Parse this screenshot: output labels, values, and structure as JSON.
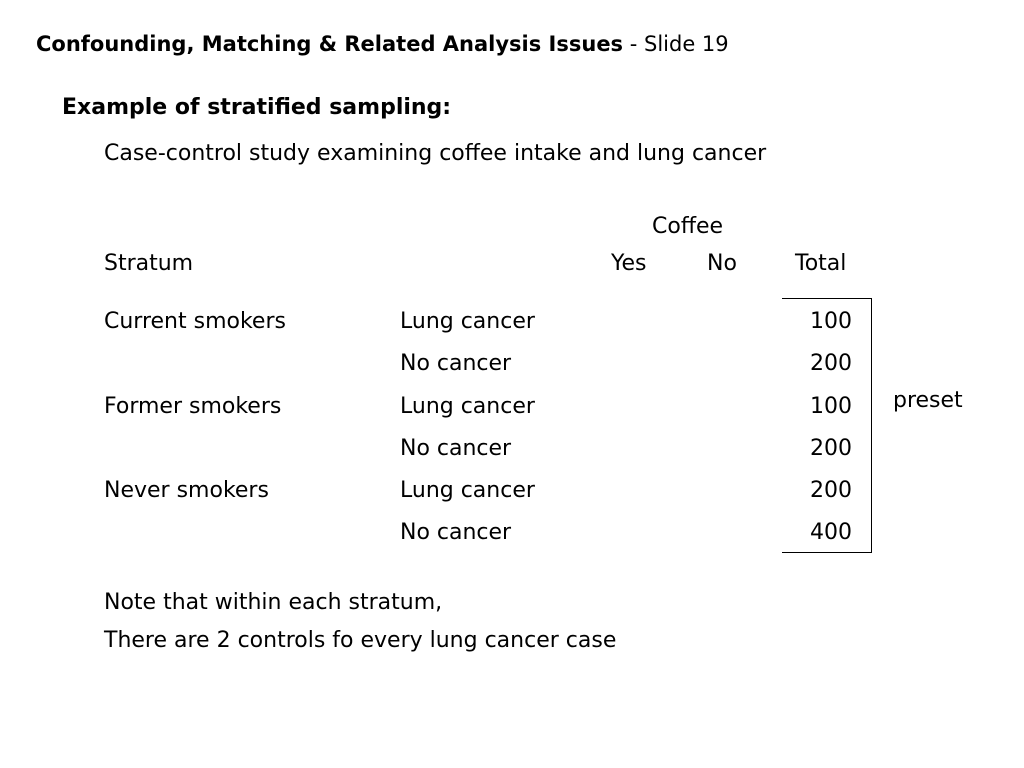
{
  "header": {
    "title": "Confounding, Matching & Related Analysis Issues",
    "separator": " - ",
    "slide": "Slide 19"
  },
  "heading": "Example of stratified sampling:",
  "subtitle": "Case-control study examining coffee intake and lung cancer",
  "table": {
    "group_header": "Coffee",
    "columns": {
      "stratum": "Stratum",
      "yes": "Yes",
      "no": "No",
      "total": "Total"
    },
    "rows": [
      {
        "stratum": "Current smokers",
        "group": "Lung cancer",
        "total": "100"
      },
      {
        "stratum": "",
        "group": "No cancer",
        "total": "200"
      },
      {
        "stratum": "Former smokers",
        "group": "Lung cancer",
        "total": "100"
      },
      {
        "stratum": "",
        "group": "No cancer",
        "total": "200"
      },
      {
        "stratum": "Never smokers",
        "group": "Lung cancer",
        "total": "200"
      },
      {
        "stratum": "",
        "group": "No cancer",
        "total": "400"
      }
    ],
    "bracket_label": "preset"
  },
  "notes": [
    "Note that within each stratum,",
    "There are 2 controls fo every lung cancer case"
  ]
}
